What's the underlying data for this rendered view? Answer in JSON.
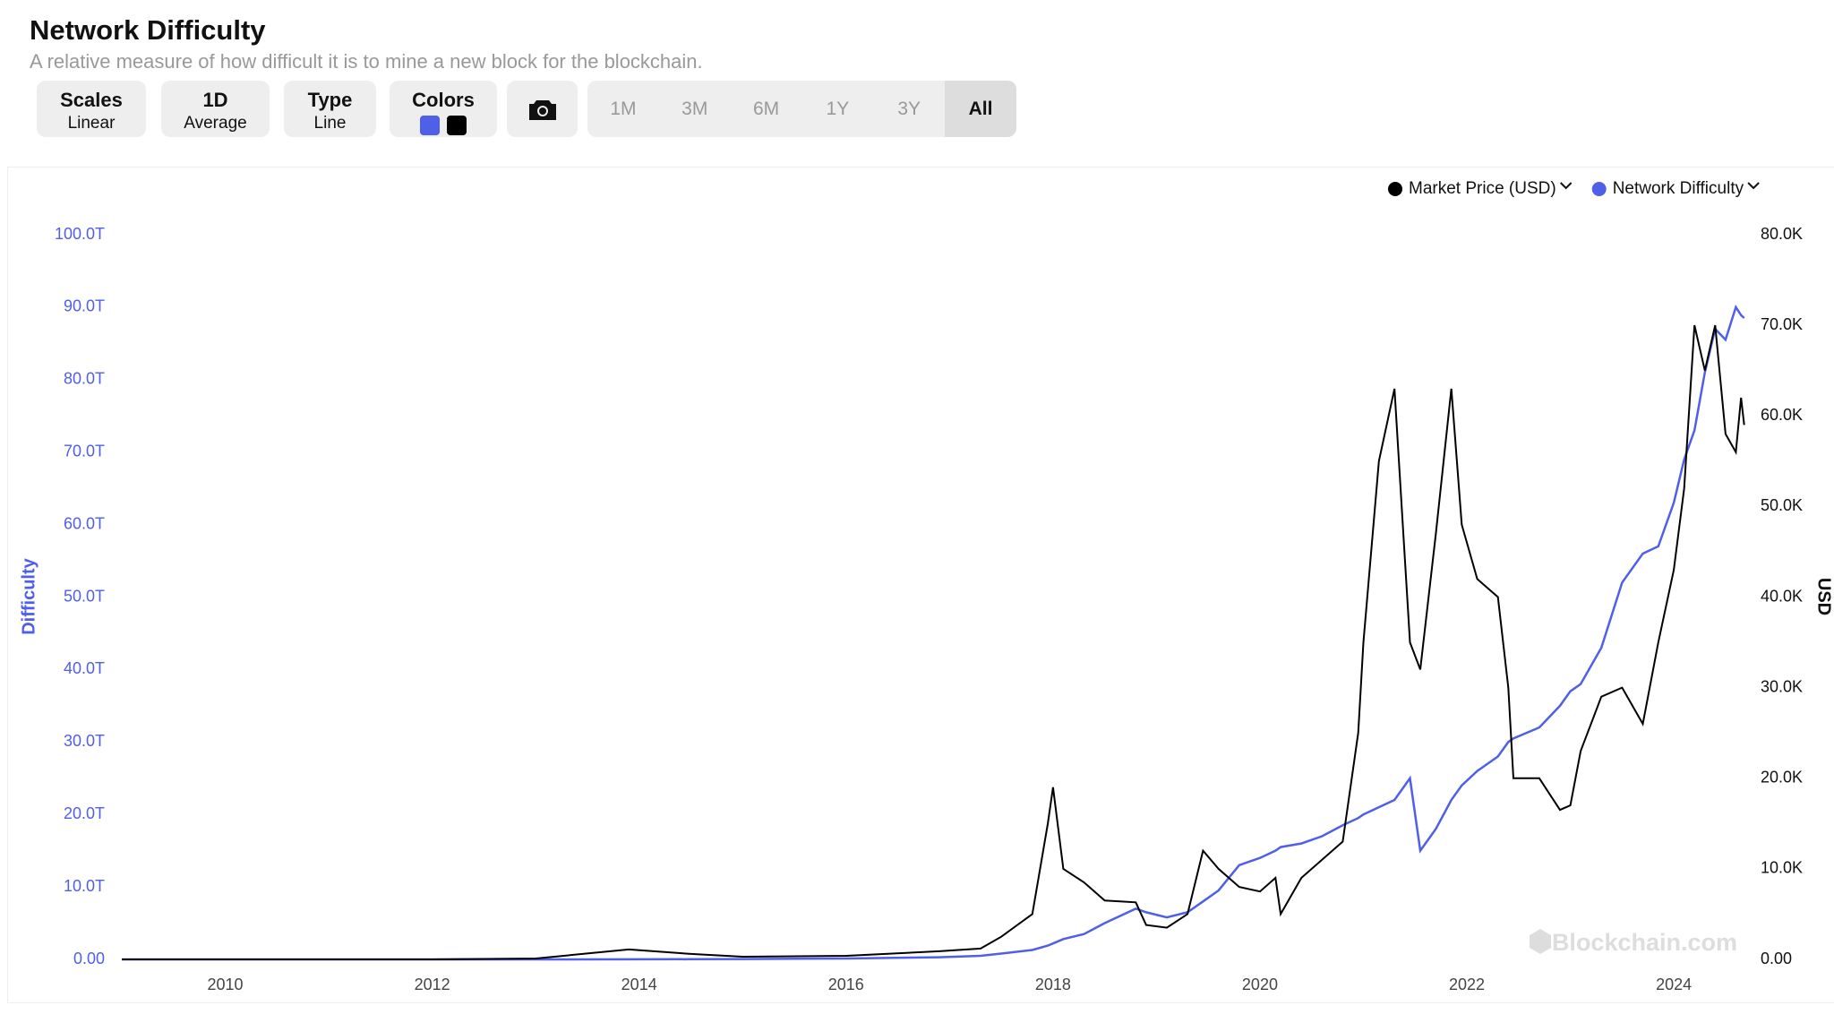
{
  "header": {
    "title": "Network Difficulty",
    "subtitle": "A relative measure of how difficult it is to mine a new block for the blockchain."
  },
  "controls": [
    {
      "label": "Scales",
      "value": "Linear"
    },
    {
      "label": "1D",
      "value": "Average"
    },
    {
      "label": "Type",
      "value": "Line"
    },
    {
      "label": "Colors"
    }
  ],
  "ranges": [
    "1M",
    "3M",
    "6M",
    "1Y",
    "3Y",
    "All"
  ],
  "watermark": "Blockchain.com",
  "chart_data": {
    "type": "line",
    "y_label": "Difficulty",
    "y2_label": "USD",
    "x": [
      2009,
      2010,
      2011,
      2012,
      2013,
      2013.9,
      2014.5,
      2015,
      2016,
      2016.9,
      2017.3,
      2017.5,
      2017.8,
      2017.95,
      2018,
      2018.1,
      2018.3,
      2018.5,
      2018.8,
      2018.9,
      2019.1,
      2019.3,
      2019.45,
      2019.6,
      2019.8,
      2020,
      2020.15,
      2020.2,
      2020.4,
      2020.6,
      2020.8,
      2020.95,
      2021,
      2021.15,
      2021.3,
      2021.45,
      2021.55,
      2021.7,
      2021.85,
      2021.95,
      2022.1,
      2022.3,
      2022.4,
      2022.45,
      2022.7,
      2022.9,
      2023,
      2023.1,
      2023.3,
      2023.5,
      2023.7,
      2023.85,
      2024,
      2024.1,
      2024.2,
      2024.3,
      2024.4,
      2024.5,
      2024.6,
      2024.65,
      2024.68
    ],
    "series": [
      {
        "name": "Market Price (USD)",
        "color": "#000000",
        "axis": "y2",
        "values": [
          0,
          0,
          0,
          0,
          0.1,
          1.1,
          0.6,
          0.3,
          0.4,
          0.9,
          1.2,
          2.5,
          5,
          15,
          19,
          10,
          8.5,
          6.5,
          6.3,
          3.8,
          3.5,
          5,
          12,
          10,
          8,
          7.5,
          9,
          5,
          9,
          11,
          13,
          25,
          35,
          55,
          63,
          35,
          32,
          47,
          63,
          48,
          42,
          40,
          30,
          20,
          20,
          16.5,
          17,
          23,
          29,
          30,
          26,
          35,
          43,
          52,
          70,
          65,
          70,
          58,
          56,
          62,
          59
        ]
      },
      {
        "name": "Network Difficulty",
        "color": "#4f5fe8",
        "values": [
          0,
          0,
          0,
          0,
          0,
          0.01,
          0.02,
          0.05,
          0.12,
          0.3,
          0.5,
          0.8,
          1.3,
          1.9,
          2.2,
          2.8,
          3.5,
          5,
          7,
          6.5,
          5.8,
          6.5,
          8,
          9.5,
          13,
          14,
          15,
          15.5,
          16,
          17,
          18.5,
          19.5,
          20,
          21,
          22,
          25,
          15,
          18,
          22,
          24,
          26,
          28,
          30,
          30.5,
          32,
          35,
          37,
          38,
          43,
          52,
          56,
          57,
          63,
          69,
          73,
          81,
          87,
          85.5,
          90,
          88.9,
          88.5
        ]
      }
    ],
    "xlim": [
      2009,
      2024.7
    ],
    "xticks": [
      2010,
      2012,
      2014,
      2016,
      2018,
      2020,
      2022,
      2024
    ],
    "ylim": [
      0,
      100
    ],
    "yticks": [
      {
        "value": 0,
        "label": "0.00"
      },
      {
        "value": 10,
        "label": "10.0T"
      },
      {
        "value": 20,
        "label": "20.0T"
      },
      {
        "value": 30,
        "label": "30.0T"
      },
      {
        "value": 40,
        "label": "40.0T"
      },
      {
        "value": 50,
        "label": "50.0T"
      },
      {
        "value": 60,
        "label": "60.0T"
      },
      {
        "value": 70,
        "label": "70.0T"
      },
      {
        "value": 80,
        "label": "80.0T"
      },
      {
        "value": 90,
        "label": "90.0T"
      },
      {
        "value": 100,
        "label": "100.0T"
      }
    ],
    "y2lim": [
      0,
      80
    ],
    "y2ticks": [
      {
        "value": 0,
        "label": "0.00"
      },
      {
        "value": 10,
        "label": "10.0K"
      },
      {
        "value": 20,
        "label": "20.0K"
      },
      {
        "value": 30,
        "label": "30.0K"
      },
      {
        "value": 40,
        "label": "40.0K"
      },
      {
        "value": 50,
        "label": "50.0K"
      },
      {
        "value": 60,
        "label": "60.0K"
      },
      {
        "value": 70,
        "label": "70.0K"
      },
      {
        "value": 80,
        "label": "80.0K"
      }
    ],
    "legend": "top-right"
  }
}
